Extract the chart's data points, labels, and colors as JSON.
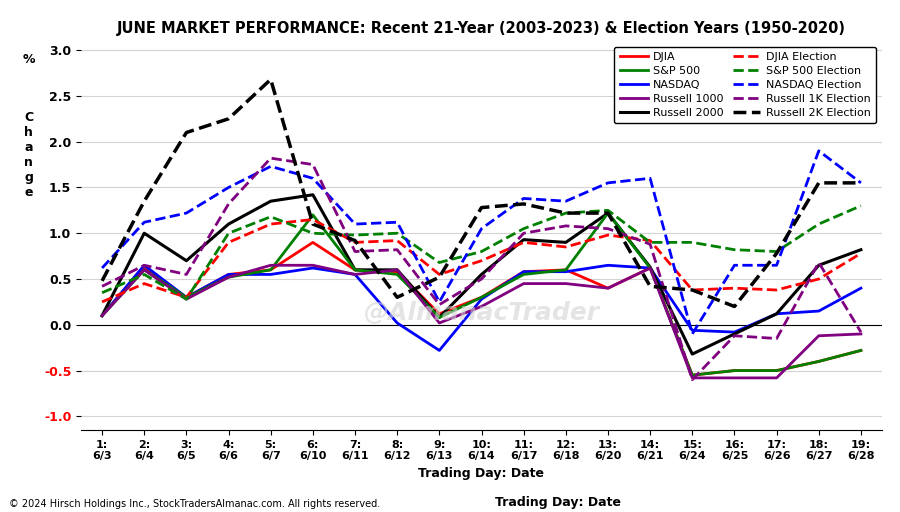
{
  "title": "JUNE MARKET PERFORMANCE: Recent 21-Year (2003-2023) & Election Years (1950-2020)",
  "xlabel": "Trading Day: Date",
  "footnote": "© 2024 Hirsch Holdings Inc., StockTradersAlmanac.com. All rights reserved.",
  "watermark": "@AlmanacTrader",
  "x_labels_top": [
    "1:",
    "2:",
    "3:",
    "4:",
    "5:",
    "6:",
    "7:",
    "8:",
    "9:",
    "10:",
    "11:",
    "12:",
    "13:",
    "14:",
    "15:",
    "16:",
    "17:",
    "18:",
    "19:"
  ],
  "x_labels_bot": [
    "6/3",
    "6/4",
    "6/5",
    "6/6",
    "6/7",
    "6/10",
    "6/11",
    "6/12",
    "6/13",
    "6/14",
    "6/17",
    "6/18",
    "6/20",
    "6/21",
    "6/24",
    "6/25",
    "6/26",
    "6/27",
    "6/28"
  ],
  "ylim": [
    -1.15,
    3.1
  ],
  "yticks": [
    -1.0,
    -0.5,
    0.0,
    0.5,
    1.0,
    1.5,
    2.0,
    2.5,
    3.0
  ],
  "legend_order_col1": [
    "DJIA",
    "NASDAQ",
    "Russell 2000",
    "S&P 500 Election",
    "Russell 1K Election"
  ],
  "legend_order_col2": [
    "S&P 500",
    "Russell 1000",
    "DJIA Election",
    "NASDAQ Election",
    "Russell 2K Election"
  ],
  "series": {
    "DJIA": {
      "color": "#ff0000",
      "linestyle": "solid",
      "linewidth": 2.0,
      "values": [
        0.1,
        0.62,
        0.3,
        0.55,
        0.6,
        0.9,
        0.6,
        0.58,
        0.12,
        0.3,
        0.58,
        0.6,
        0.4,
        0.62,
        -0.55,
        -0.5,
        -0.5,
        -0.4,
        -0.28
      ]
    },
    "NASDAQ": {
      "color": "#0000ff",
      "linestyle": "solid",
      "linewidth": 2.0,
      "values": [
        0.1,
        0.65,
        0.3,
        0.55,
        0.55,
        0.62,
        0.55,
        0.02,
        -0.28,
        0.28,
        0.58,
        0.58,
        0.65,
        0.62,
        -0.06,
        -0.08,
        0.12,
        0.15,
        0.4
      ]
    },
    "Russell 2000": {
      "color": "#000000",
      "linestyle": "solid",
      "linewidth": 2.2,
      "values": [
        0.1,
        1.0,
        0.7,
        1.1,
        1.35,
        1.42,
        0.6,
        0.6,
        0.08,
        0.55,
        0.93,
        0.9,
        1.22,
        0.63,
        -0.32,
        -0.1,
        0.12,
        0.65,
        0.82
      ]
    },
    "S&P 500": {
      "color": "#008000",
      "linestyle": "solid",
      "linewidth": 2.0,
      "values": [
        0.1,
        0.6,
        0.3,
        0.52,
        0.6,
        1.2,
        0.6,
        0.55,
        0.08,
        0.3,
        0.55,
        0.6,
        1.22,
        0.62,
        -0.55,
        -0.5,
        -0.5,
        -0.4,
        -0.28
      ]
    },
    "Russell 1000": {
      "color": "#800080",
      "linestyle": "solid",
      "linewidth": 2.0,
      "values": [
        0.1,
        0.6,
        0.28,
        0.52,
        0.65,
        0.65,
        0.55,
        0.6,
        0.02,
        0.2,
        0.45,
        0.45,
        0.4,
        0.62,
        -0.58,
        -0.58,
        -0.58,
        -0.12,
        -0.1
      ]
    },
    "DJIA Election": {
      "color": "#ff0000",
      "linestyle": "dashed",
      "linewidth": 2.0,
      "values": [
        0.25,
        0.45,
        0.3,
        0.9,
        1.1,
        1.15,
        0.9,
        0.92,
        0.55,
        0.7,
        0.9,
        0.85,
        0.98,
        0.92,
        0.38,
        0.4,
        0.38,
        0.5,
        0.78
      ]
    },
    "S&P 500 Election": {
      "color": "#008000",
      "linestyle": "dashed",
      "linewidth": 2.0,
      "values": [
        0.35,
        0.55,
        0.28,
        1.0,
        1.18,
        1.0,
        0.98,
        1.0,
        0.68,
        0.8,
        1.05,
        1.22,
        1.25,
        0.9,
        0.9,
        0.82,
        0.8,
        1.1,
        1.3
      ]
    },
    "NASDAQ Election": {
      "color": "#0000ff",
      "linestyle": "dashed",
      "linewidth": 2.0,
      "values": [
        0.62,
        1.12,
        1.22,
        1.5,
        1.73,
        1.6,
        1.1,
        1.12,
        0.25,
        1.05,
        1.38,
        1.35,
        1.55,
        1.6,
        -0.1,
        0.65,
        0.65,
        1.9,
        1.55
      ]
    },
    "Russell 1K Election": {
      "color": "#800080",
      "linestyle": "dashed",
      "linewidth": 2.0,
      "values": [
        0.42,
        0.65,
        0.55,
        1.32,
        1.82,
        1.75,
        0.8,
        0.82,
        0.22,
        0.5,
        1.0,
        1.08,
        1.05,
        0.88,
        -0.6,
        -0.12,
        -0.15,
        0.68,
        -0.08
      ]
    },
    "Russell 2K Election": {
      "color": "#000000",
      "linestyle": "dashed",
      "linewidth": 2.5,
      "values": [
        0.48,
        1.35,
        2.1,
        2.25,
        2.68,
        1.1,
        0.92,
        0.3,
        0.52,
        1.28,
        1.32,
        1.22,
        1.22,
        0.42,
        0.38,
        0.2,
        0.78,
        1.55,
        1.55
      ]
    }
  }
}
